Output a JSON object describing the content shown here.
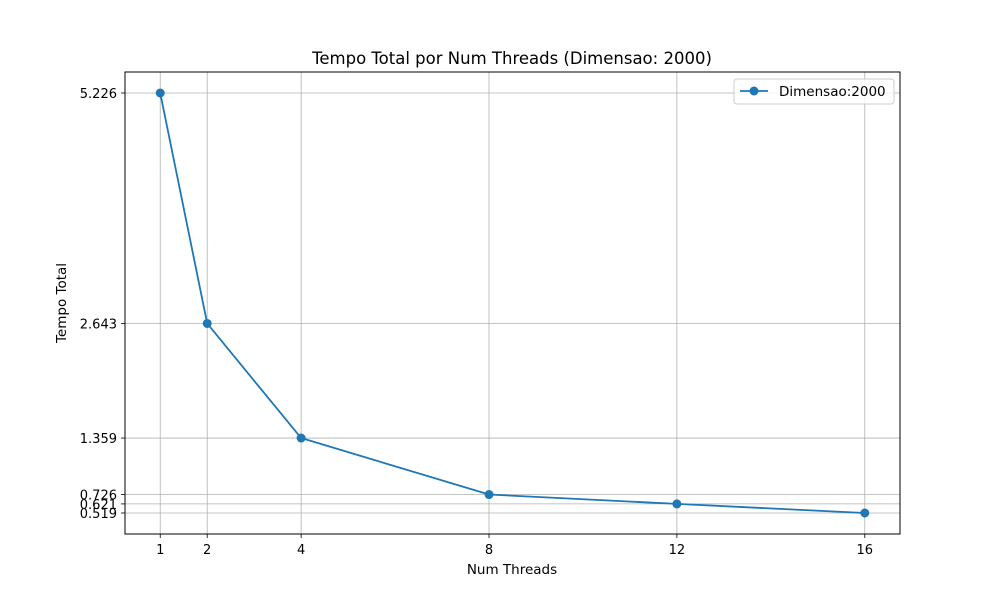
{
  "chart_data": {
    "type": "line",
    "title": "Tempo Total por Num Threads (Dimensao: 2000)",
    "xlabel": "Num Threads",
    "ylabel": "Tempo Total",
    "x": [
      1,
      2,
      4,
      8,
      12,
      16
    ],
    "xticks": [
      "1",
      "2",
      "4",
      "8",
      "12",
      "16"
    ],
    "yticks": [
      "0.519",
      "0.621",
      "0.726",
      "1.359",
      "2.643",
      "5.226"
    ],
    "ytick_values": [
      0.519,
      0.621,
      0.726,
      1.359,
      2.643,
      5.226
    ],
    "xlim": [
      0.25,
      16.75
    ],
    "ylim": [
      0.28365,
      5.46135
    ],
    "grid": true,
    "legend_position": "top-right",
    "series": [
      {
        "name": "Dimensao:2000",
        "color": "#1f77b4",
        "marker": "circle",
        "values": [
          5.226,
          2.643,
          1.359,
          0.726,
          0.621,
          0.519
        ]
      }
    ]
  }
}
